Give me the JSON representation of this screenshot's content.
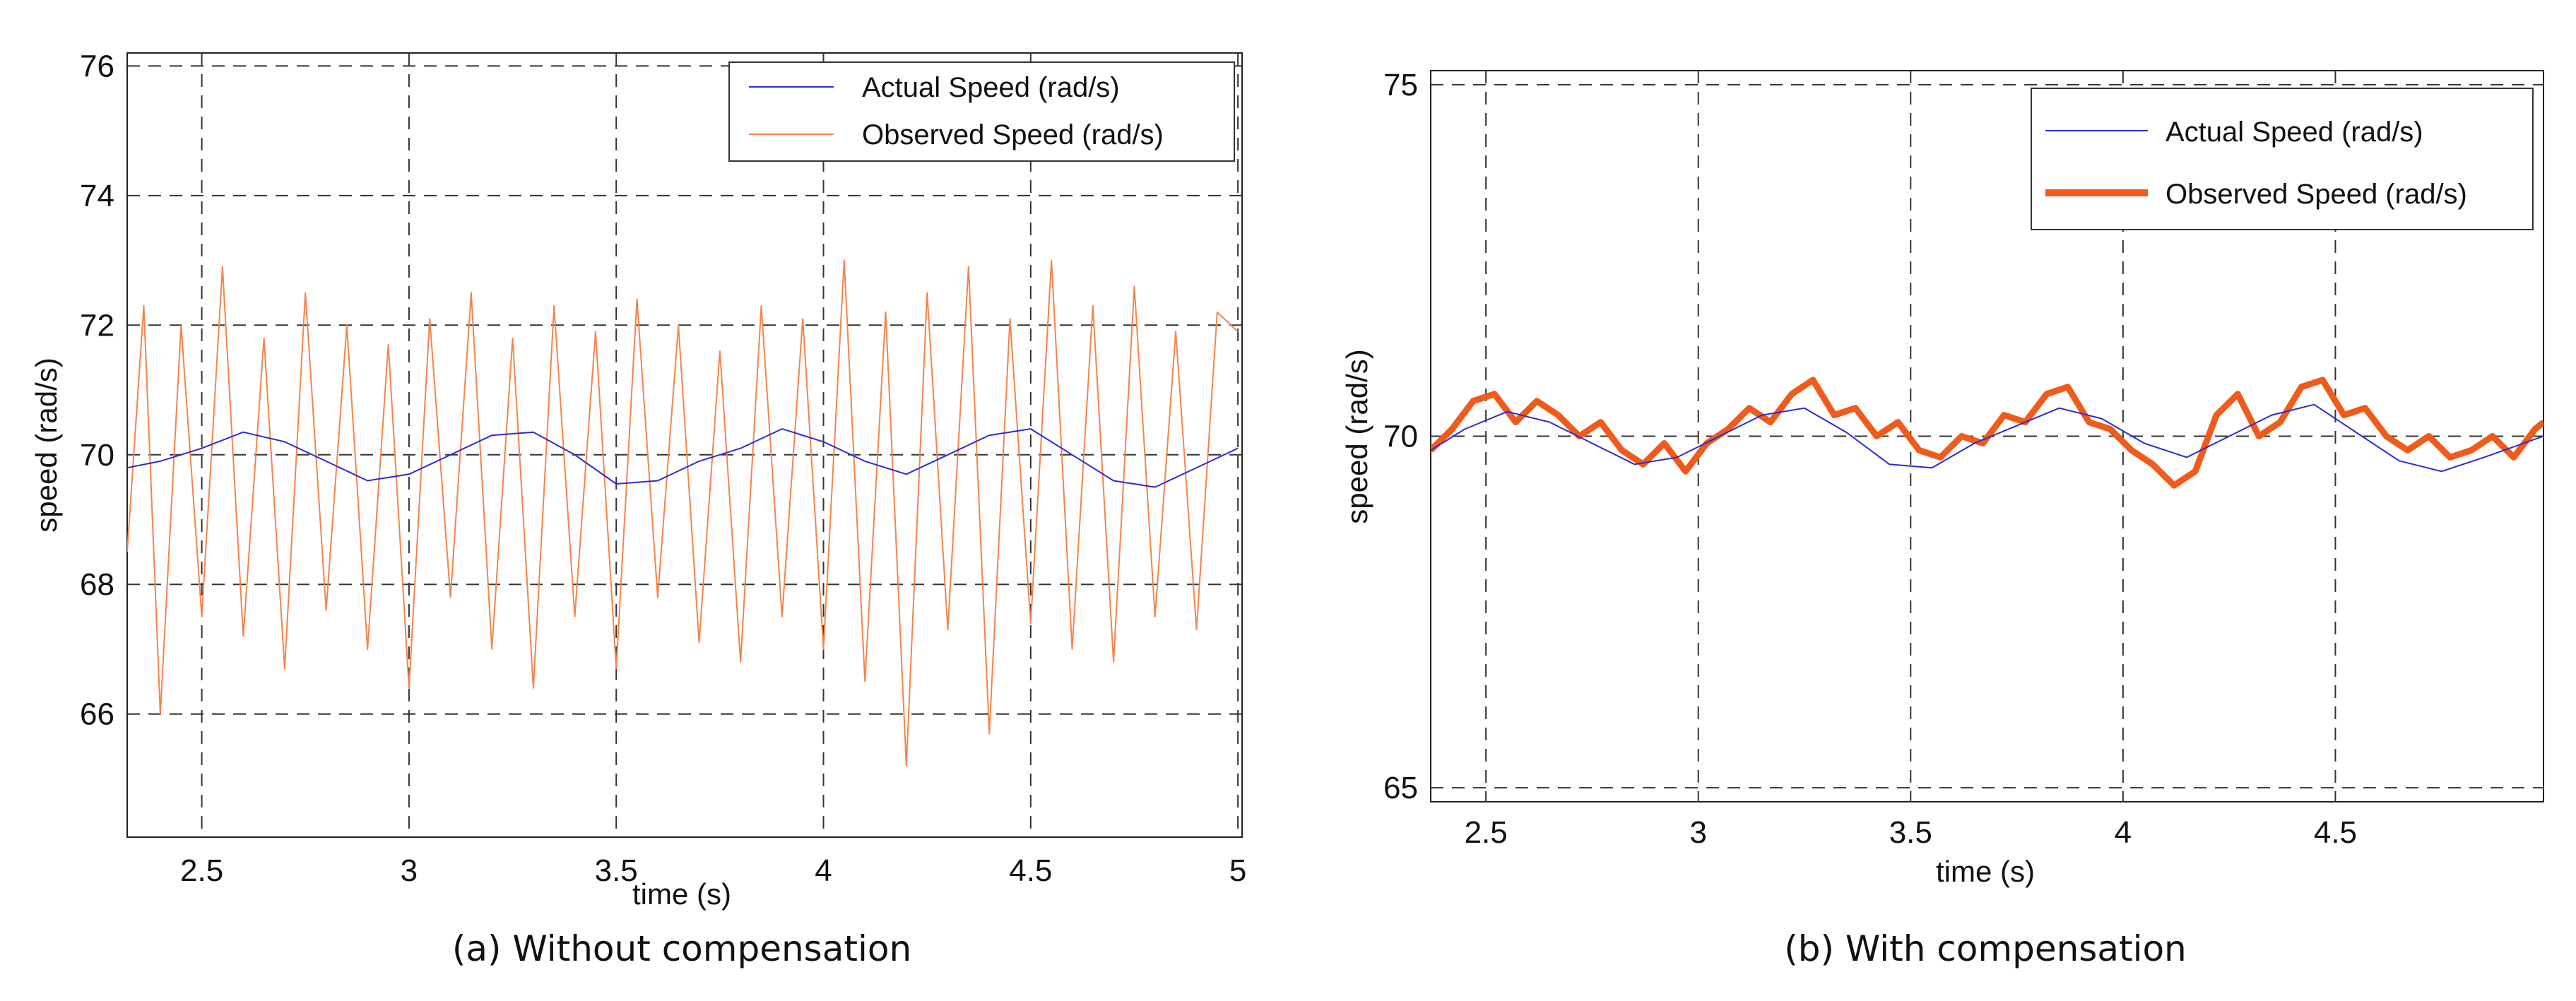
{
  "chart_data": [
    {
      "type": "line",
      "caption": "(a) Without compensation",
      "xlabel": "time (s)",
      "ylabel": "speed (rad/s)",
      "xlim": [
        2.32,
        5.01
      ],
      "ylim": [
        64.1,
        76.2
      ],
      "xticks": [
        2.5,
        3,
        3.5,
        4,
        4.5,
        5
      ],
      "xtick_labels": [
        "2.5",
        "3",
        "3.5",
        "4",
        "4.5",
        "5"
      ],
      "yticks": [
        66,
        68,
        70,
        72,
        74,
        76
      ],
      "ytick_labels": [
        "66",
        "68",
        "70",
        "72",
        "74",
        "76"
      ],
      "grid": true,
      "legend_position": "top-right",
      "series": [
        {
          "name": "Actual Speed (rad/s)",
          "color": "#2b2bd6",
          "x": [
            2.32,
            2.4,
            2.5,
            2.6,
            2.7,
            2.8,
            2.9,
            3.0,
            3.1,
            3.2,
            3.3,
            3.4,
            3.5,
            3.6,
            3.7,
            3.8,
            3.9,
            4.0,
            4.1,
            4.2,
            4.3,
            4.4,
            4.5,
            4.6,
            4.7,
            4.8,
            4.9,
            5.0
          ],
          "y": [
            69.8,
            69.9,
            70.1,
            70.35,
            70.2,
            69.9,
            69.6,
            69.7,
            70.0,
            70.3,
            70.35,
            70.0,
            69.55,
            69.6,
            69.9,
            70.1,
            70.4,
            70.2,
            69.9,
            69.7,
            70.0,
            70.3,
            70.4,
            70.0,
            69.6,
            69.5,
            69.8,
            70.1
          ]
        },
        {
          "name": "Observed Speed (rad/s)",
          "color": "#f4844a",
          "x": [
            2.32,
            2.36,
            2.4,
            2.45,
            2.5,
            2.55,
            2.6,
            2.65,
            2.7,
            2.75,
            2.8,
            2.85,
            2.9,
            2.95,
            3.0,
            3.05,
            3.1,
            3.15,
            3.2,
            3.25,
            3.3,
            3.35,
            3.4,
            3.45,
            3.5,
            3.55,
            3.6,
            3.65,
            3.7,
            3.75,
            3.8,
            3.85,
            3.9,
            3.95,
            4.0,
            4.05,
            4.1,
            4.15,
            4.2,
            4.25,
            4.3,
            4.35,
            4.4,
            4.45,
            4.5,
            4.55,
            4.6,
            4.65,
            4.7,
            4.75,
            4.8,
            4.85,
            4.9,
            4.95,
            5.0
          ],
          "y": [
            68.5,
            72.3,
            66.0,
            72.0,
            67.5,
            72.9,
            67.2,
            71.8,
            66.7,
            72.5,
            67.6,
            72.0,
            67.0,
            71.7,
            66.4,
            72.1,
            67.8,
            72.5,
            67.0,
            71.8,
            66.4,
            72.3,
            67.5,
            71.9,
            66.7,
            72.4,
            67.8,
            72.0,
            67.1,
            71.6,
            66.8,
            72.3,
            67.5,
            72.1,
            67.0,
            73.0,
            66.5,
            72.2,
            65.2,
            72.5,
            67.3,
            72.9,
            65.7,
            72.1,
            67.4,
            73.0,
            67.0,
            72.3,
            66.8,
            72.6,
            67.5,
            71.9,
            67.3,
            72.2,
            71.9
          ]
        }
      ]
    },
    {
      "type": "line",
      "caption": "(b) With compensation",
      "xlabel": "time (s)",
      "ylabel": "speed (rad/s)",
      "xlim": [
        2.37,
        4.99
      ],
      "ylim": [
        64.8,
        75.2
      ],
      "xticks": [
        2.5,
        3,
        3.5,
        4,
        4.5
      ],
      "xtick_labels": [
        "2.5",
        "3",
        "3.5",
        "4",
        "4.5"
      ],
      "yticks": [
        65,
        70,
        75
      ],
      "ytick_labels": [
        "65",
        "70",
        "75"
      ],
      "grid": true,
      "legend_position": "top-right",
      "series": [
        {
          "name": "Actual Speed (rad/s)",
          "color": "#2b2bd6",
          "x": [
            2.37,
            2.45,
            2.55,
            2.65,
            2.75,
            2.85,
            2.95,
            3.05,
            3.15,
            3.25,
            3.35,
            3.45,
            3.55,
            3.65,
            3.75,
            3.85,
            3.95,
            4.05,
            4.15,
            4.25,
            4.35,
            4.45,
            4.55,
            4.65,
            4.75,
            4.85,
            4.99
          ],
          "y": [
            69.8,
            70.1,
            70.35,
            70.2,
            69.9,
            69.6,
            69.7,
            70.0,
            70.3,
            70.4,
            70.05,
            69.6,
            69.55,
            69.9,
            70.15,
            70.4,
            70.25,
            69.9,
            69.7,
            70.0,
            70.3,
            70.45,
            70.05,
            69.65,
            69.5,
            69.7,
            70.0
          ]
        },
        {
          "name": "Observed Speed (rad/s)",
          "color": "#f05a1a",
          "x": [
            2.37,
            2.42,
            2.47,
            2.52,
            2.57,
            2.62,
            2.67,
            2.72,
            2.77,
            2.82,
            2.87,
            2.92,
            2.97,
            3.02,
            3.07,
            3.12,
            3.17,
            3.22,
            3.27,
            3.32,
            3.37,
            3.42,
            3.47,
            3.52,
            3.57,
            3.62,
            3.67,
            3.72,
            3.77,
            3.82,
            3.87,
            3.92,
            3.97,
            4.02,
            4.07,
            4.12,
            4.17,
            4.22,
            4.27,
            4.32,
            4.37,
            4.42,
            4.47,
            4.52,
            4.57,
            4.62,
            4.67,
            4.72,
            4.77,
            4.82,
            4.87,
            4.92,
            4.97,
            4.99
          ],
          "y": [
            69.8,
            70.1,
            70.5,
            70.6,
            70.2,
            70.5,
            70.3,
            70.0,
            70.2,
            69.8,
            69.6,
            69.9,
            69.5,
            69.9,
            70.1,
            70.4,
            70.2,
            70.6,
            70.8,
            70.3,
            70.4,
            70.0,
            70.2,
            69.8,
            69.7,
            70.0,
            69.9,
            70.3,
            70.2,
            70.6,
            70.7,
            70.2,
            70.1,
            69.8,
            69.6,
            69.3,
            69.5,
            70.3,
            70.6,
            70.0,
            70.2,
            70.7,
            70.8,
            70.3,
            70.4,
            70.0,
            69.8,
            70.0,
            69.7,
            69.8,
            70.0,
            69.7,
            70.1,
            70.2
          ]
        }
      ]
    }
  ]
}
